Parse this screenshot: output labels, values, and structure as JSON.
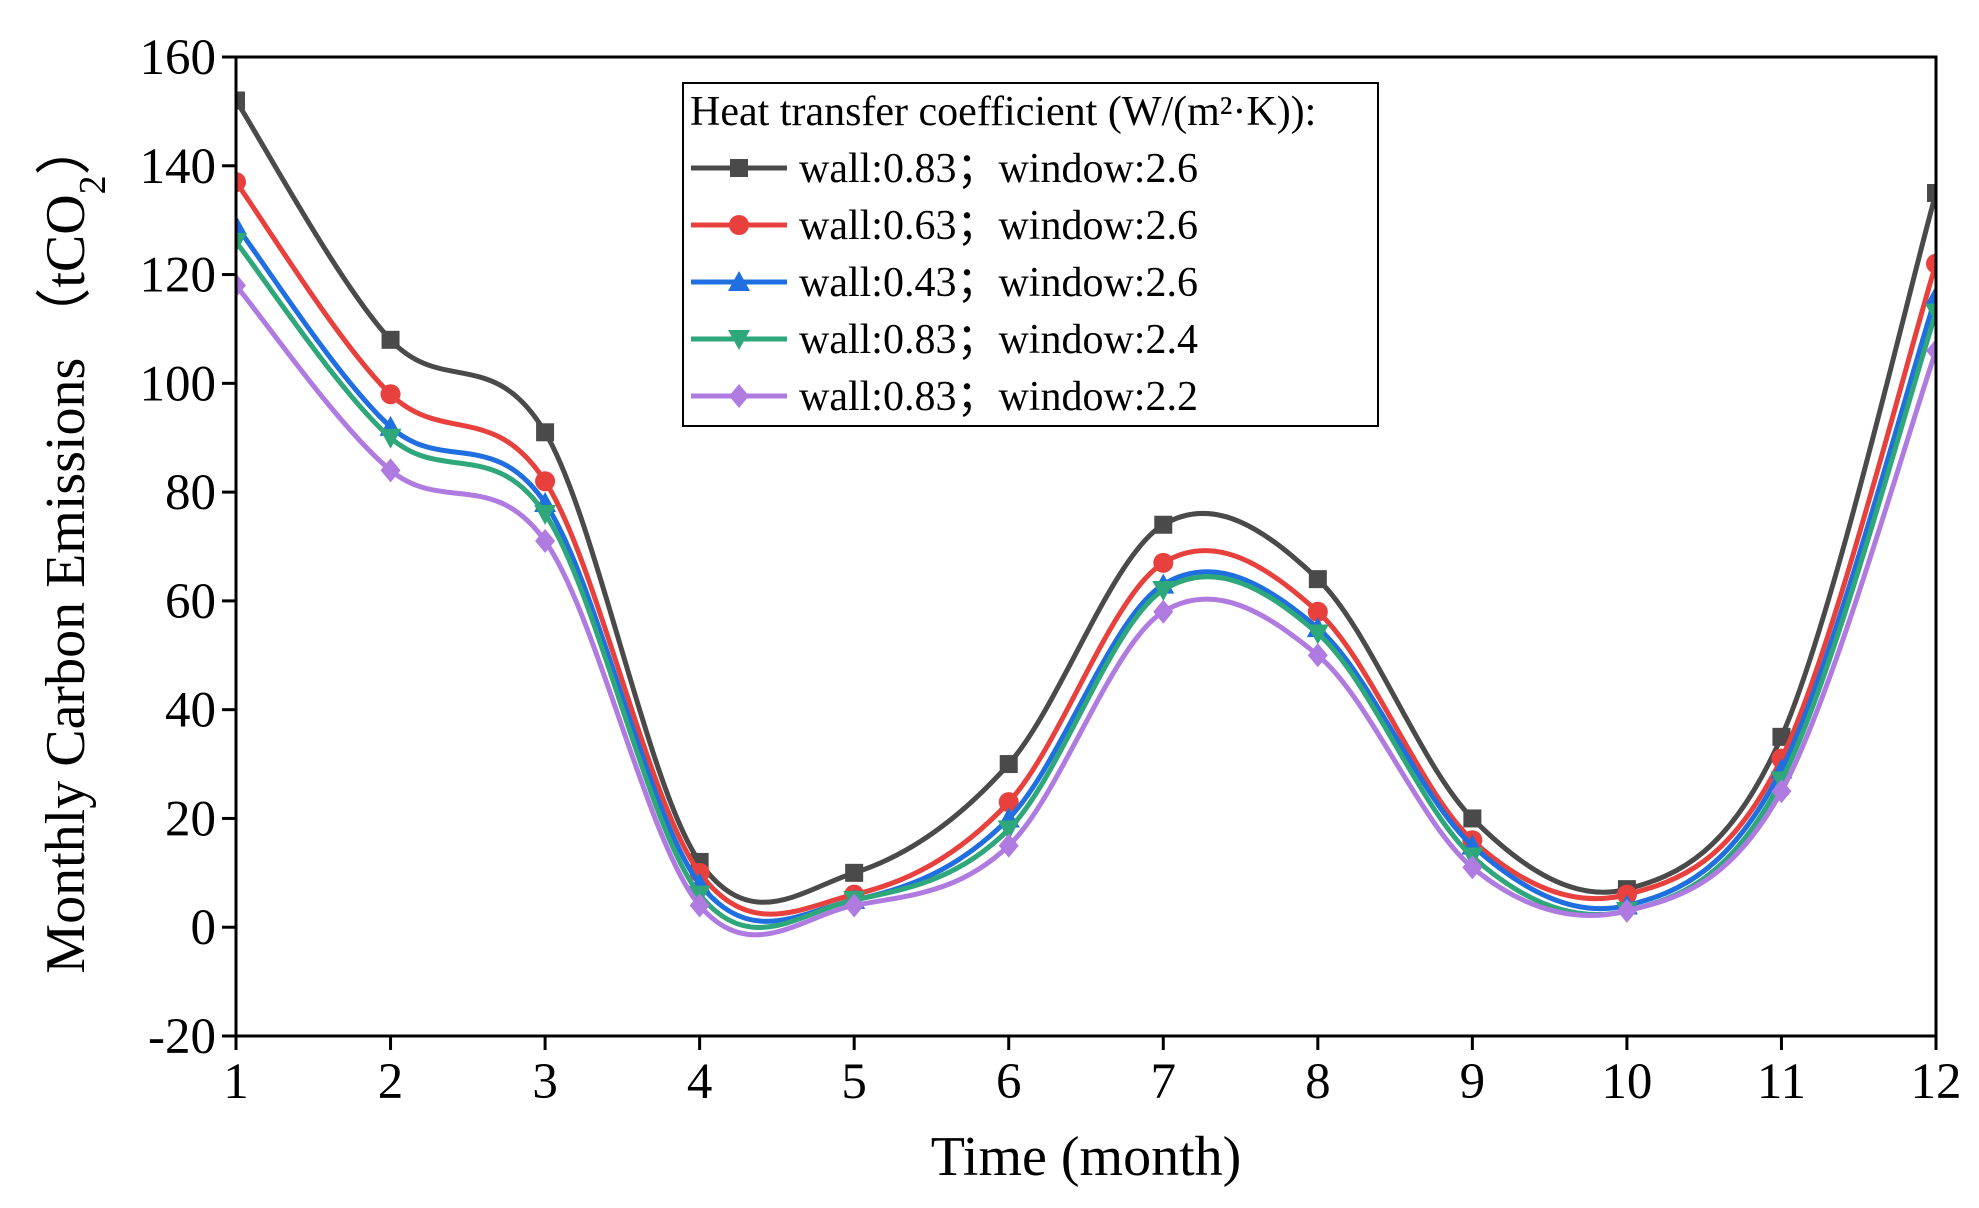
{
  "chart_data": {
    "type": "line",
    "title": "",
    "xlabel": "Time (month)",
    "ylabel": "Monthly Carbon Emissions",
    "ylabel_unit": "（tCO",
    "ylabel_unit_sub": "2",
    "ylabel_unit_close": "）",
    "xlim": [
      1,
      12
    ],
    "ylim": [
      -20,
      160
    ],
    "x": [
      1,
      2,
      3,
      4,
      5,
      6,
      7,
      8,
      9,
      10,
      11,
      12
    ],
    "x_ticks": [
      "1",
      "2",
      "3",
      "4",
      "5",
      "6",
      "7",
      "8",
      "9",
      "10",
      "11",
      "12"
    ],
    "y_ticks": [
      "-20",
      "0",
      "20",
      "40",
      "60",
      "80",
      "100",
      "120",
      "140",
      "160"
    ],
    "legend_title": "Heat transfer coefficient (W/(m²·K)):",
    "legend_position": "top-center",
    "series": [
      {
        "name": "wall:0.83；window:2.6",
        "color": "#4a4a4a",
        "marker": "square",
        "values": [
          152,
          108,
          91,
          12,
          10,
          30,
          74,
          64,
          20,
          7,
          35,
          135
        ]
      },
      {
        "name": "wall:0.63；window:2.6",
        "color": "#e8403d",
        "marker": "circle",
        "values": [
          137,
          98,
          82,
          10,
          6,
          23,
          67,
          58,
          16,
          6,
          31,
          122
        ]
      },
      {
        "name": "wall:0.43；window:2.6",
        "color": "#1f6fe0",
        "marker": "triangle-up",
        "values": [
          129,
          92,
          78,
          8,
          5,
          20,
          63,
          55,
          15,
          4,
          29,
          116
        ]
      },
      {
        "name": "wall:0.83；window:2.4",
        "color": "#2ea77a",
        "marker": "triangle-down",
        "values": [
          126,
          90,
          76,
          6,
          5,
          18,
          62,
          54,
          13,
          3,
          27,
          113
        ]
      },
      {
        "name": "wall:0.83；window:2.2",
        "color": "#b07be0",
        "marker": "diamond",
        "values": [
          118,
          84,
          71,
          4,
          4,
          15,
          58,
          50,
          11,
          3,
          25,
          106
        ]
      }
    ]
  }
}
